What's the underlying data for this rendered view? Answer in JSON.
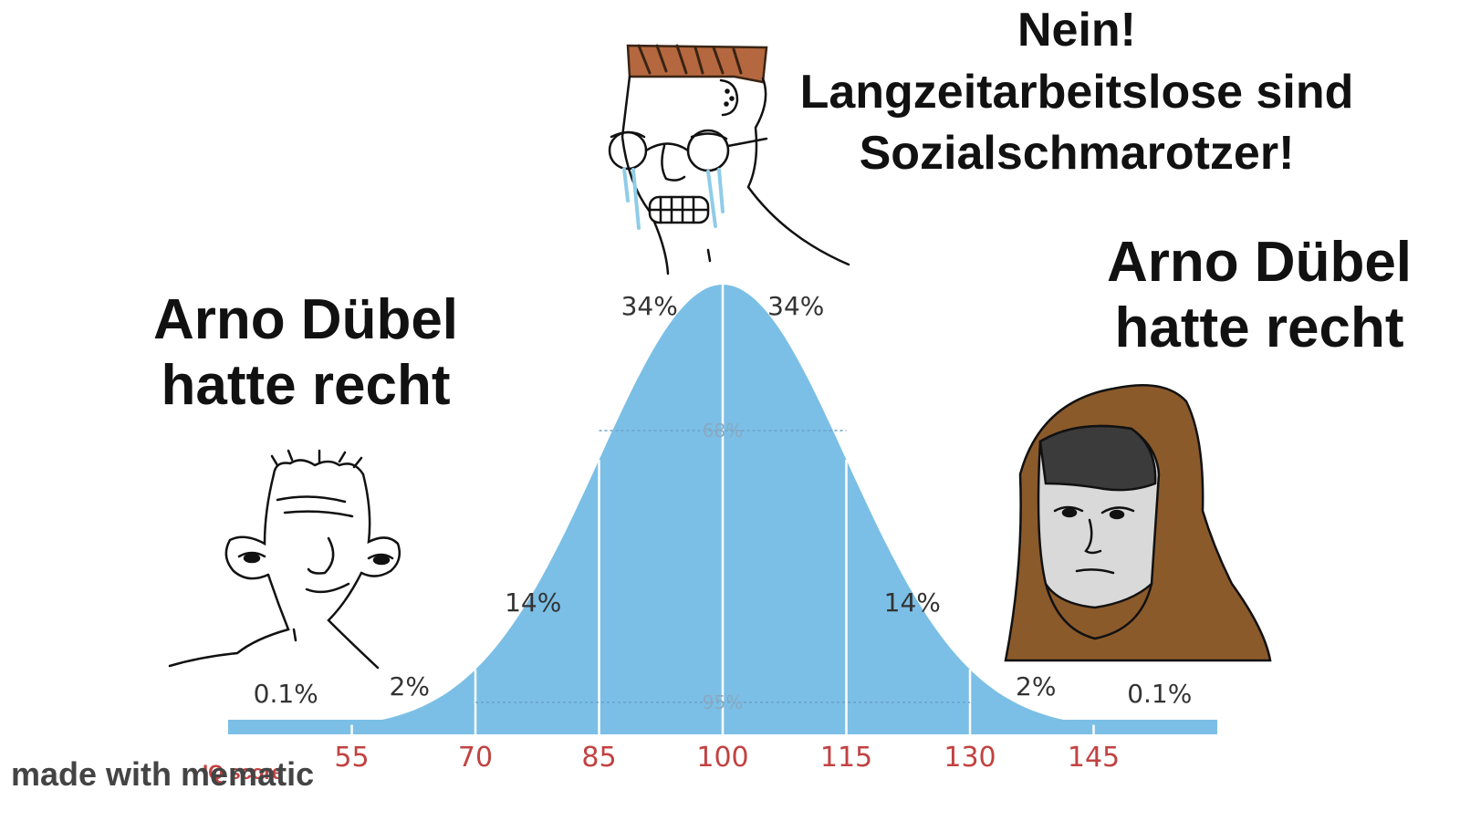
{
  "captions": {
    "left": [
      "Arno Dübel",
      "hatte recht"
    ],
    "middle": [
      "Nein!",
      "Langzeitarbeitslose sind",
      "Sozialschmarotzer!"
    ],
    "right": [
      "Arno Dübel",
      "hatte recht"
    ]
  },
  "chart_data": {
    "type": "area",
    "xlabel": "IQ score",
    "xticks": [
      55,
      70,
      85,
      100,
      115,
      130,
      145
    ],
    "xlim": [
      40,
      160
    ],
    "mean": 100,
    "sd": 15,
    "segment_labels": [
      {
        "x": 47,
        "label": "0.1%"
      },
      {
        "x": 62,
        "label": "2%"
      },
      {
        "x": 77,
        "label": "14%"
      },
      {
        "x": 92,
        "label": "34%"
      },
      {
        "x": 108,
        "label": "34%"
      },
      {
        "x": 123,
        "label": "14%"
      },
      {
        "x": 138,
        "label": "2%"
      },
      {
        "x": 153,
        "label": "0.1%"
      }
    ],
    "band_labels": [
      {
        "range": [
          85,
          115
        ],
        "label": "68%"
      },
      {
        "range": [
          70,
          130
        ],
        "label": "95%"
      }
    ],
    "colors": {
      "fill": "#7bbfe6",
      "ticks": "#c24242"
    }
  },
  "icons": {
    "left": "smiling-wojak-icon",
    "middle": "crying-glasses-wojak-icon",
    "right": "hooded-wojak-icon"
  },
  "watermark": "made with mematic"
}
